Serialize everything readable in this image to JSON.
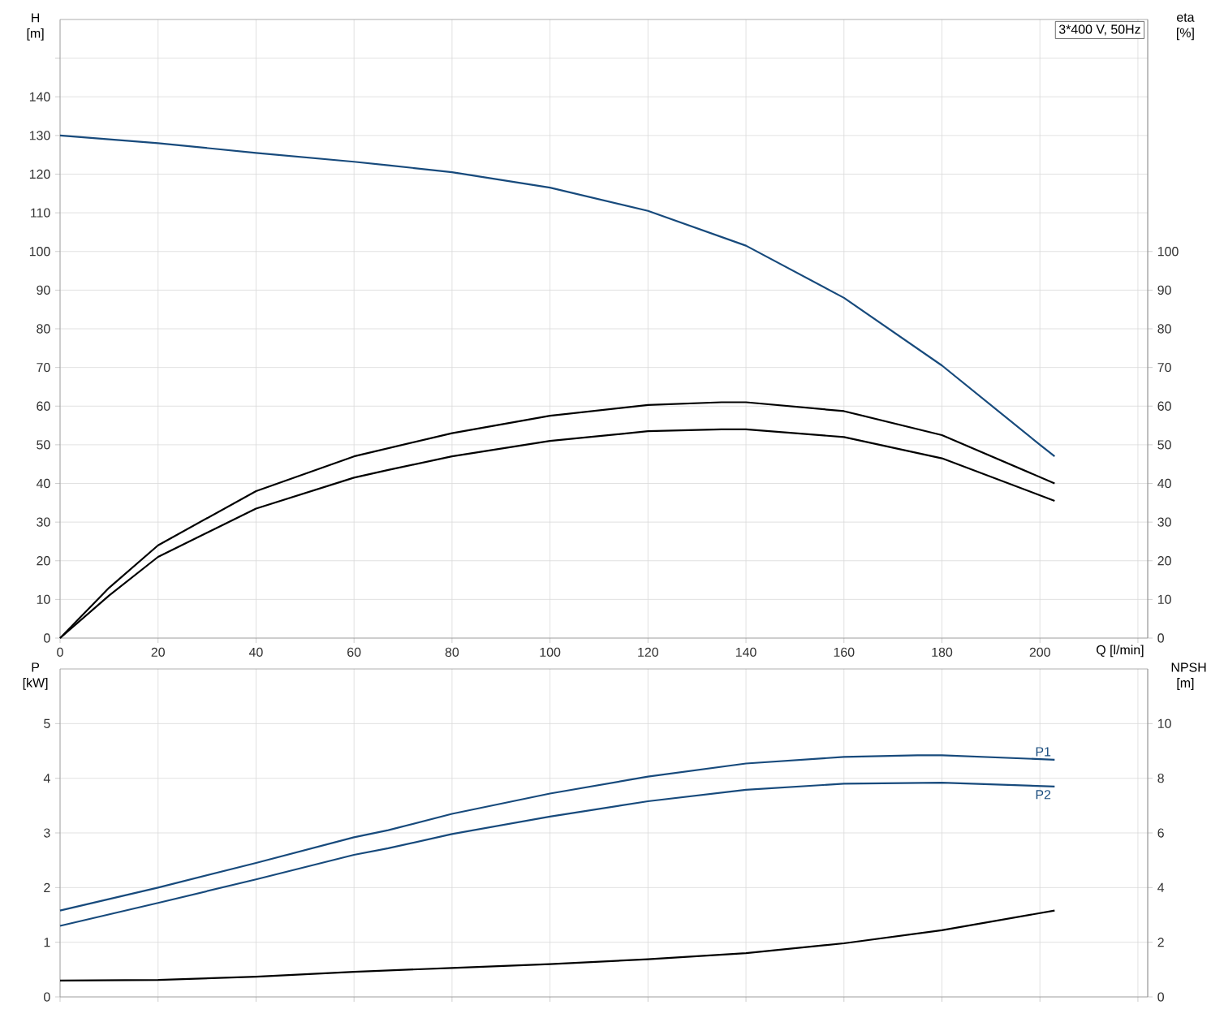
{
  "chart_data": [
    {
      "type": "line",
      "title": "3*400 V, 50Hz",
      "xlabel": "Q [l/min]",
      "ylabel": "H [m]",
      "y2label": "eta [%]",
      "xlim": [
        0,
        222
      ],
      "xticks": [
        0,
        20,
        40,
        60,
        80,
        100,
        120,
        140,
        160,
        180,
        200,
        {
          "value": 220,
          "label": null
        }
      ],
      "ylim": [
        0,
        160
      ],
      "yticks": [
        0,
        10,
        20,
        30,
        40,
        50,
        60,
        70,
        80,
        90,
        100,
        110,
        120,
        130,
        140,
        {
          "value": 150,
          "label": null
        }
      ],
      "y2lim": [
        0,
        160
      ],
      "y2ticks": [
        0,
        10,
        20,
        30,
        40,
        50,
        60,
        70,
        80,
        90,
        100
      ],
      "grid": true,
      "line_style": "solid",
      "series": [
        {
          "color": "#174a7c",
          "x": [
            0,
            20,
            40,
            60,
            67,
            80,
            100,
            120,
            140,
            160,
            180,
            200,
            203
          ],
          "values": [
            130,
            128,
            125.5,
            123.2,
            122.3,
            120.5,
            116.5,
            110.5,
            101.5,
            88,
            70.5,
            50,
            47
          ]
        },
        {
          "color": "#000000",
          "axis": "y2",
          "x": [
            0,
            10,
            20,
            40,
            60,
            80,
            100,
            120,
            135,
            140,
            160,
            180,
            203
          ],
          "values": [
            0,
            13,
            24,
            38,
            47,
            53,
            57.5,
            60.3,
            61,
            61,
            58.7,
            52.5,
            40
          ]
        },
        {
          "color": "#000000",
          "axis": "y2",
          "x": [
            0,
            10,
            20,
            40,
            60,
            67,
            80,
            100,
            120,
            135,
            140,
            160,
            180,
            203
          ],
          "values": [
            0,
            11,
            21,
            33.5,
            41.5,
            43.5,
            47,
            51,
            53.5,
            54,
            54,
            52,
            46.5,
            35.5
          ]
        }
      ]
    },
    {
      "type": "line",
      "ylabel": "P [kW]",
      "y2label": "NPSH [m]",
      "xlim": [
        0,
        222
      ],
      "xticks": [
        0,
        20,
        40,
        60,
        80,
        100,
        120,
        140,
        160,
        180,
        200,
        220
      ],
      "ylim": [
        0,
        6
      ],
      "yticks": [
        0,
        1,
        2,
        3,
        4,
        5
      ],
      "y2lim": [
        0,
        12
      ],
      "y2ticks": [
        0,
        2,
        4,
        6,
        8,
        10
      ],
      "tick_labels": "y",
      "grid": true,
      "line_style": "solid",
      "series": [
        {
          "name": "P1",
          "color": "#174a7c",
          "x": [
            0,
            20,
            40,
            60,
            67,
            80,
            100,
            120,
            140,
            160,
            175,
            180,
            203
          ],
          "values": [
            1.58,
            2.0,
            2.45,
            2.92,
            3.05,
            3.35,
            3.72,
            4.03,
            4.27,
            4.39,
            4.42,
            4.42,
            4.34
          ]
        },
        {
          "name": "P2",
          "color": "#174a7c",
          "x": [
            0,
            20,
            40,
            60,
            67,
            80,
            100,
            120,
            140,
            160,
            180,
            203
          ],
          "values": [
            1.3,
            1.72,
            2.15,
            2.6,
            2.72,
            2.98,
            3.3,
            3.58,
            3.79,
            3.9,
            3.92,
            3.85
          ]
        },
        {
          "color": "#000000",
          "axis": "y2",
          "x": [
            0,
            20,
            40,
            60,
            80,
            100,
            120,
            140,
            160,
            180,
            203
          ],
          "values": [
            0.6,
            0.62,
            0.74,
            0.92,
            1.06,
            1.2,
            1.38,
            1.6,
            1.96,
            2.44,
            3.16
          ]
        }
      ]
    }
  ]
}
